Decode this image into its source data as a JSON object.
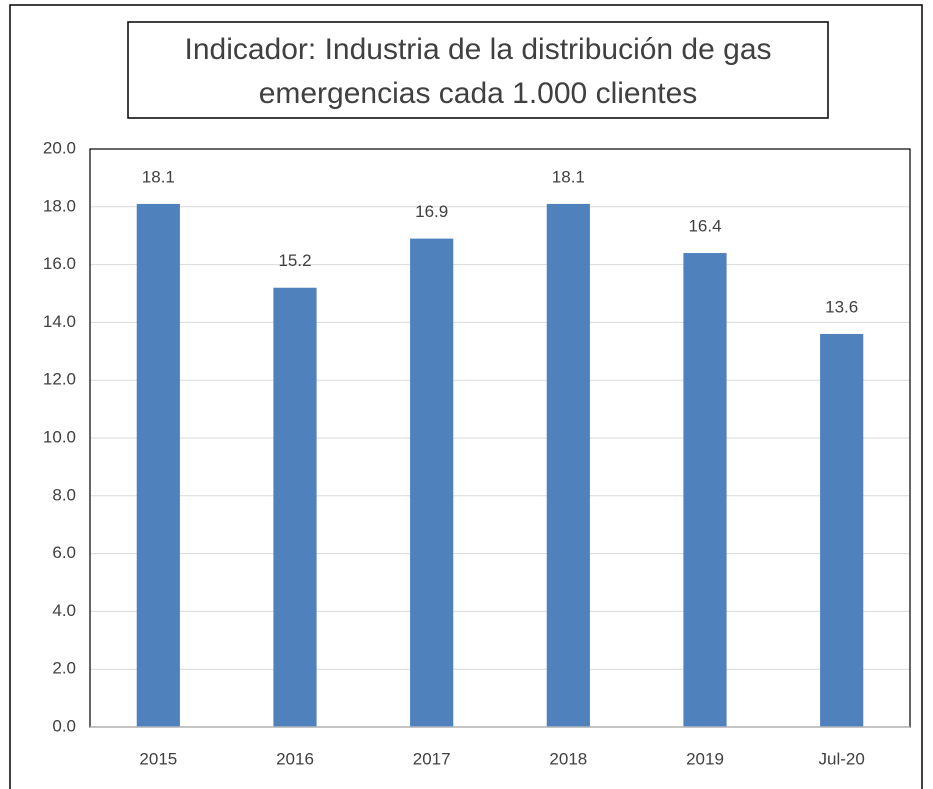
{
  "chart_data": {
    "type": "bar",
    "title": [
      "Indicador: Industria de la distribución de gas",
      "emergencias cada 1.000 clientes"
    ],
    "categories": [
      "2015",
      "2016",
      "2017",
      "2018",
      "2019",
      "Jul-20"
    ],
    "values": [
      18.1,
      15.2,
      16.9,
      18.1,
      16.4,
      13.6
    ],
    "color": "#4f81bd",
    "ylim": [
      0,
      20
    ],
    "yticks": [
      {
        "value": 0,
        "label": "0.0"
      },
      {
        "value": 2,
        "label": "2.0"
      },
      {
        "value": 4,
        "label": "4.0"
      },
      {
        "value": 6,
        "label": "6.0"
      },
      {
        "value": 8,
        "label": "8.0"
      },
      {
        "value": 10,
        "label": "10.0"
      },
      {
        "value": 12,
        "label": "12.0"
      },
      {
        "value": 14,
        "label": "14.0"
      },
      {
        "value": 16,
        "label": "16.0"
      },
      {
        "value": 18,
        "label": "18.0"
      },
      {
        "value": 20,
        "label": "20.0"
      }
    ],
    "grid": true
  }
}
